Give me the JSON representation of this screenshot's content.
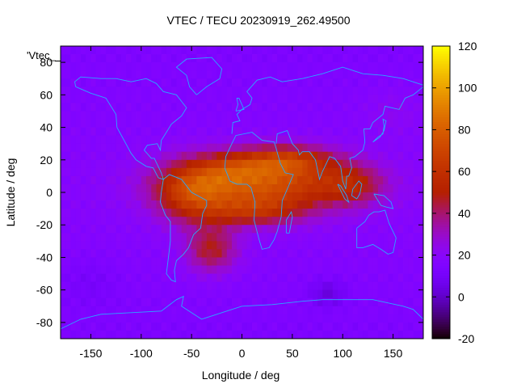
{
  "chart_data": {
    "type": "heatmap",
    "title": "VTEC / TECU 20230919_262.49500",
    "xlabel": "Longitude / deg",
    "ylabel": "Latitude / deg",
    "legend_label": "'Vtec_",
    "xlim": [
      -180,
      180
    ],
    "ylim": [
      -90,
      90
    ],
    "xticks": [
      -150,
      -100,
      -50,
      0,
      50,
      100,
      150
    ],
    "yticks": [
      -80,
      -60,
      -40,
      -20,
      0,
      20,
      40,
      60,
      80
    ],
    "colorbar": {
      "range": [
        -20,
        120
      ],
      "ticks": [
        -20,
        0,
        20,
        40,
        60,
        80,
        100,
        120
      ]
    },
    "values_note": "Vertical TEC in TECU; low (~10-20) over most of the globe, enhanced band (60-110) along the geomagnetic equator between ~-80 and 150 deg longitude",
    "background_level": 14,
    "features": [
      {
        "lon": 20,
        "lat": 5,
        "lon_width": 85,
        "lat_width": 16,
        "value": 55
      },
      {
        "lon": 45,
        "lat": 20,
        "lon_width": 45,
        "lat_width": 9,
        "value": 35
      },
      {
        "lon": 10,
        "lat": -12,
        "lon_width": 50,
        "lat_width": 9,
        "value": 28
      },
      {
        "lon": -50,
        "lat": 0,
        "lon_width": 35,
        "lat_width": 18,
        "value": 35
      },
      {
        "lon": -30,
        "lat": -35,
        "lon_width": 25,
        "lat_width": 14,
        "value": 30
      },
      {
        "lon": 110,
        "lat": 5,
        "lon_width": 30,
        "lat_width": 12,
        "value": 22
      },
      {
        "lon": -10,
        "lat": 15,
        "lon_width": 35,
        "lat_width": 10,
        "value": 18
      },
      {
        "lon": 85,
        "lat": -62,
        "lon_width": 18,
        "lat_width": 8,
        "value": -12
      },
      {
        "lon": -150,
        "lat": -55,
        "lon_width": 30,
        "lat_width": 15,
        "value": -5
      },
      {
        "lon": 150,
        "lat": 50,
        "lon_width": 30,
        "lat_width": 15,
        "value": 5
      }
    ],
    "colors": {
      "frame": "#000000",
      "coastline": "#2aa8ff"
    }
  }
}
